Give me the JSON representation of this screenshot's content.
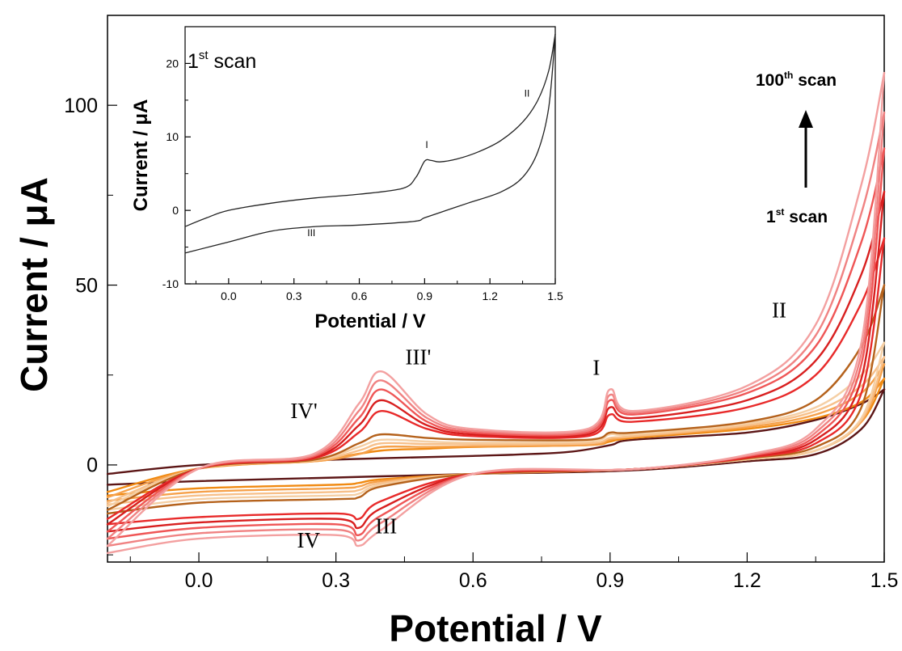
{
  "colors": {
    "axis": "#000000",
    "inset_line": "#222222",
    "arrow": "#000000",
    "scan_palette": [
      "#5c1616",
      "#f08a12",
      "#f6a14a",
      "#f7c08a",
      "#f5cfa4",
      "#b5621c",
      "#e82a2a",
      "#d81f1f",
      "#ef5656",
      "#f08282",
      "#f3a0a0"
    ]
  },
  "chart_data": [
    {
      "type": "line",
      "role": "main",
      "xlabel": "Potential / V",
      "ylabel": "Current / μA",
      "xlim": [
        -0.2,
        1.5
      ],
      "ylim": [
        -27,
        125
      ],
      "xticks": [
        0.0,
        0.3,
        0.6,
        0.9,
        1.2,
        1.5
      ],
      "xtick_labels": [
        "0.0",
        "0.3",
        "0.6",
        "0.9",
        "1.2",
        "1.5"
      ],
      "yticks": [
        0,
        50,
        100
      ],
      "ytick_labels": [
        "0",
        "50",
        "100"
      ],
      "grid": false,
      "annotations": [
        {
          "text": "IV'",
          "x": 0.23,
          "y": 13
        },
        {
          "text": "III'",
          "x": 0.48,
          "y": 28
        },
        {
          "text": "I",
          "x": 0.87,
          "y": 25
        },
        {
          "text": "II",
          "x": 1.27,
          "y": 41
        },
        {
          "text": "IV",
          "x": 0.24,
          "y": -23
        },
        {
          "text": "III",
          "x": 0.41,
          "y": -19
        }
      ],
      "arrow_annotation": {
        "label_top_base": "100",
        "label_top_sup": "th",
        "label_top_rest": " scan",
        "label_bottom_base": "1",
        "label_bottom_sup": "st",
        "label_bottom_rest": " scan",
        "direction": "up"
      },
      "series": [
        {
          "scan_index": 1,
          "color_index": 0,
          "anodic": {
            "x": [
              -0.2,
              0.0,
              0.3,
              0.6,
              0.8,
              0.9,
              0.95,
              1.2,
              1.35,
              1.45,
              1.5
            ],
            "y": [
              -2.5,
              0.0,
              1.5,
              2.5,
              3.5,
              5.5,
              7.0,
              9.0,
              12.5,
              17.0,
              21.0
            ]
          },
          "cathodic": {
            "x": [
              1.5,
              1.45,
              1.35,
              1.2,
              0.95,
              0.6,
              0.3,
              0.0,
              -0.2
            ],
            "y": [
              21.0,
              10.0,
              3.0,
              1.0,
              -1.5,
              -2.5,
              -3.5,
              -4.5,
              -5.5
            ]
          }
        },
        {
          "scan_index": 10,
          "color_index": 1,
          "anodic": {
            "x": [
              -0.2,
              0.0,
              0.25,
              0.3,
              0.4,
              0.5,
              0.6,
              0.85,
              0.9,
              0.95,
              1.2,
              1.35,
              1.45,
              1.5
            ],
            "y": [
              -7.5,
              -1.0,
              1.0,
              2.0,
              4.0,
              4.5,
              5.0,
              5.5,
              6.5,
              7.5,
              10.0,
              13.0,
              17.5,
              24.0
            ]
          },
          "cathodic": {
            "x": [
              1.5,
              1.45,
              1.35,
              1.2,
              0.95,
              0.6,
              0.4,
              0.35,
              0.3,
              0.0,
              -0.2
            ],
            "y": [
              24.0,
              12.0,
              4.0,
              1.5,
              -1.2,
              -2.5,
              -4.0,
              -5.0,
              -5.5,
              -6.5,
              -8.5
            ]
          }
        },
        {
          "scan_index": 20,
          "color_index": 2,
          "anodic": {
            "x": [
              -0.2,
              0.0,
              0.25,
              0.35,
              0.4,
              0.5,
              0.6,
              0.85,
              0.9,
              0.95,
              1.2,
              1.35,
              1.45,
              1.5
            ],
            "y": [
              -9.0,
              -1.0,
              1.0,
              3.0,
              5.0,
              5.0,
              5.2,
              5.5,
              7.0,
              7.8,
              10.5,
              14.0,
              20.0,
              28.0
            ]
          },
          "cathodic": {
            "x": [
              1.5,
              1.45,
              1.35,
              1.2,
              0.95,
              0.6,
              0.4,
              0.35,
              0.3,
              0.0,
              -0.2
            ],
            "y": [
              28.0,
              12.0,
              4.0,
              1.5,
              -1.2,
              -2.5,
              -4.5,
              -6.0,
              -6.5,
              -7.5,
              -10.0
            ]
          }
        },
        {
          "scan_index": 30,
          "color_index": 3,
          "anodic": {
            "x": [
              -0.2,
              0.0,
              0.25,
              0.35,
              0.4,
              0.5,
              0.6,
              0.85,
              0.9,
              0.95,
              1.2,
              1.35,
              1.45,
              1.5
            ],
            "y": [
              -10.5,
              -1.0,
              1.2,
              4.0,
              6.0,
              5.8,
              5.8,
              6.0,
              7.5,
              8.0,
              11.0,
              15.0,
              22.0,
              30.0
            ]
          },
          "cathodic": {
            "x": [
              1.5,
              1.45,
              1.35,
              1.2,
              0.95,
              0.6,
              0.4,
              0.35,
              0.3,
              0.0,
              -0.2
            ],
            "y": [
              30.0,
              12.5,
              4.0,
              1.5,
              -1.2,
              -2.5,
              -5.0,
              -7.0,
              -7.5,
              -8.5,
              -11.0
            ]
          }
        },
        {
          "scan_index": 40,
          "color_index": 4,
          "anodic": {
            "x": [
              -0.2,
              0.0,
              0.25,
              0.35,
              0.4,
              0.5,
              0.6,
              0.85,
              0.9,
              0.95,
              1.2,
              1.35,
              1.45,
              1.5
            ],
            "y": [
              -11.5,
              -1.0,
              1.3,
              5.0,
              7.0,
              6.5,
              6.2,
              6.5,
              8.5,
              8.5,
              11.5,
              16.0,
              25.0,
              34.0
            ]
          },
          "cathodic": {
            "x": [
              1.5,
              1.45,
              1.35,
              1.2,
              0.95,
              0.6,
              0.4,
              0.35,
              0.3,
              0.0,
              -0.2
            ],
            "y": [
              34.0,
              13.0,
              4.0,
              1.5,
              -1.2,
              -2.5,
              -5.5,
              -8.0,
              -8.5,
              -9.5,
              -12.5
            ]
          }
        },
        {
          "scan_index": 50,
          "color_index": 5,
          "anodic": {
            "x": [
              -0.2,
              0.0,
              0.25,
              0.35,
              0.4,
              0.5,
              0.6,
              0.85,
              0.9,
              0.95,
              1.2,
              1.35,
              1.45,
              1.5
            ],
            "y": [
              -12.5,
              -1.0,
              1.4,
              6.0,
              8.5,
              7.5,
              7.0,
              7.0,
              9.0,
              9.0,
              12.0,
              18.0,
              33.0,
              50.0
            ]
          },
          "cathodic": {
            "x": [
              1.5,
              1.45,
              1.35,
              1.2,
              0.95,
              0.6,
              0.4,
              0.35,
              0.3,
              0.0,
              -0.2
            ],
            "y": [
              50.0,
              16.0,
              5.0,
              1.8,
              -1.2,
              -2.5,
              -6.0,
              -9.0,
              -9.5,
              -10.5,
              -13.5
            ]
          }
        },
        {
          "scan_index": 60,
          "color_index": 6,
          "anodic": {
            "x": [
              -0.2,
              0.0,
              0.25,
              0.35,
              0.4,
              0.5,
              0.6,
              0.85,
              0.9,
              0.95,
              1.2,
              1.35,
              1.45,
              1.5
            ],
            "y": [
              -15.0,
              -1.0,
              1.8,
              9.0,
              15.0,
              10.0,
              8.0,
              8.0,
              14.0,
              12.0,
              16.0,
              25.0,
              45.0,
              63.0
            ]
          },
          "cathodic": {
            "x": [
              1.5,
              1.45,
              1.35,
              1.2,
              0.95,
              0.6,
              0.4,
              0.35,
              0.3,
              0.0,
              -0.2
            ],
            "y": [
              63.0,
              20.0,
              6.0,
              2.0,
              -1.2,
              -2.5,
              -10.0,
              -15.0,
              -13.5,
              -14.5,
              -16.5
            ]
          }
        },
        {
          "scan_index": 70,
          "color_index": 7,
          "anodic": {
            "x": [
              -0.2,
              0.0,
              0.25,
              0.35,
              0.4,
              0.5,
              0.6,
              0.85,
              0.9,
              0.95,
              1.2,
              1.35,
              1.45,
              1.5
            ],
            "y": [
              -16.5,
              -1.0,
              2.0,
              11.0,
              18.0,
              11.0,
              8.5,
              8.5,
              16.0,
              13.0,
              18.0,
              29.0,
              53.0,
              76.0
            ]
          },
          "cathodic": {
            "x": [
              1.5,
              1.45,
              1.35,
              1.2,
              0.95,
              0.6,
              0.4,
              0.35,
              0.3,
              0.0,
              -0.2
            ],
            "y": [
              76.0,
              24.0,
              7.0,
              2.2,
              -1.2,
              -2.5,
              -12.0,
              -17.5,
              -15.0,
              -16.0,
              -18.5
            ]
          }
        },
        {
          "scan_index": 80,
          "color_index": 8,
          "anodic": {
            "x": [
              -0.2,
              0.0,
              0.25,
              0.35,
              0.4,
              0.5,
              0.6,
              0.85,
              0.9,
              0.95,
              1.2,
              1.35,
              1.45,
              1.5
            ],
            "y": [
              -18.5,
              -1.0,
              2.3,
              13.0,
              21.0,
              12.0,
              9.0,
              9.0,
              18.0,
              14.0,
              20.0,
              33.0,
              62.0,
              88.0
            ]
          },
          "cathodic": {
            "x": [
              1.5,
              1.45,
              1.35,
              1.2,
              0.95,
              0.6,
              0.4,
              0.35,
              0.3,
              0.0,
              -0.2
            ],
            "y": [
              88.0,
              28.0,
              8.0,
              2.4,
              -1.2,
              -2.5,
              -14.0,
              -19.5,
              -16.5,
              -17.5,
              -20.5
            ]
          }
        },
        {
          "scan_index": 90,
          "color_index": 9,
          "anodic": {
            "x": [
              -0.2,
              0.0,
              0.25,
              0.35,
              0.4,
              0.5,
              0.6,
              0.85,
              0.9,
              0.95,
              1.2,
              1.35,
              1.45,
              1.5
            ],
            "y": [
              -20.5,
              -1.0,
              2.6,
              15.0,
              23.5,
              13.0,
              9.5,
              9.5,
              19.5,
              14.5,
              21.0,
              36.0,
              70.0,
              98.0
            ]
          },
          "cathodic": {
            "x": [
              1.5,
              1.45,
              1.35,
              1.2,
              0.95,
              0.6,
              0.4,
              0.35,
              0.3,
              0.0,
              -0.2
            ],
            "y": [
              98.0,
              31.0,
              9.0,
              2.6,
              -1.2,
              -2.5,
              -16.0,
              -21.0,
              -18.0,
              -19.0,
              -22.5
            ]
          }
        },
        {
          "scan_index": 100,
          "color_index": 10,
          "anodic": {
            "x": [
              -0.2,
              0.0,
              0.25,
              0.35,
              0.4,
              0.5,
              0.6,
              0.85,
              0.9,
              0.95,
              1.2,
              1.35,
              1.45,
              1.5
            ],
            "y": [
              -22.5,
              -1.0,
              3.0,
              17.0,
              26.0,
              14.0,
              10.0,
              10.0,
              21.0,
              15.0,
              22.0,
              39.0,
              78.0,
              109.0
            ]
          },
          "cathodic": {
            "x": [
              1.5,
              1.45,
              1.35,
              1.2,
              0.95,
              0.6,
              0.4,
              0.35,
              0.3,
              0.0,
              -0.2
            ],
            "y": [
              109.0,
              34.0,
              10.0,
              2.8,
              -1.2,
              -2.5,
              -18.0,
              -22.5,
              -19.5,
              -20.5,
              -24.5
            ]
          }
        }
      ]
    },
    {
      "type": "line",
      "role": "inset",
      "xlabel": "Potential / V",
      "ylabel": "Current / μA",
      "xlim": [
        -0.2,
        1.5
      ],
      "ylim": [
        -10,
        25
      ],
      "xticks": [
        0.0,
        0.3,
        0.6,
        0.9,
        1.2,
        1.5
      ],
      "xtick_labels": [
        "0.0",
        "0.3",
        "0.6",
        "0.9",
        "1.2",
        "1.5"
      ],
      "yticks": [
        -10,
        0,
        10,
        20
      ],
      "ytick_labels": [
        "-10",
        "0",
        "10",
        "20"
      ],
      "grid": false,
      "scan_label_base": "1",
      "scan_label_sup": "st",
      "scan_label_rest": " scan",
      "annotations": [
        {
          "text": "I",
          "x": 0.91,
          "y": 8.5
        },
        {
          "text": "II",
          "x": 1.37,
          "y": 15.5
        },
        {
          "text": "III",
          "x": 0.38,
          "y": -3.5
        }
      ],
      "series": [
        {
          "anodic": {
            "x": [
              -0.2,
              -0.1,
              0.0,
              0.2,
              0.4,
              0.6,
              0.8,
              0.86,
              0.9,
              0.93,
              0.97,
              1.05,
              1.15,
              1.25,
              1.35,
              1.42,
              1.47,
              1.5
            ],
            "y": [
              -2.2,
              -1.0,
              0.0,
              1.0,
              1.7,
              2.2,
              3.0,
              4.5,
              6.7,
              6.8,
              6.6,
              7.0,
              8.0,
              9.5,
              12.0,
              15.0,
              19.0,
              24.0
            ]
          },
          "cathodic": {
            "x": [
              1.5,
              1.47,
              1.42,
              1.35,
              1.25,
              1.1,
              1.0,
              0.9,
              0.85,
              0.6,
              0.4,
              0.2,
              0.0,
              -0.2
            ],
            "y": [
              24.0,
              14.0,
              8.0,
              4.5,
              2.5,
              1.0,
              0.0,
              -1.0,
              -1.5,
              -2.0,
              -2.2,
              -2.8,
              -4.3,
              -5.8
            ]
          }
        }
      ]
    }
  ]
}
